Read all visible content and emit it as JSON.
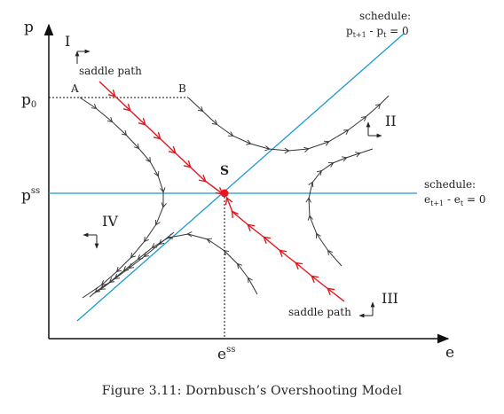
{
  "axes": {
    "y_label": "p",
    "x_label": "e",
    "p0_label_main": "p",
    "p0_label_sub": "0",
    "pss_label_main": "p",
    "pss_label_sup": "ss",
    "ess_label_main": "e",
    "ess_label_sup": "ss"
  },
  "schedules": {
    "price": {
      "title": "schedule:",
      "eq_p1": "p",
      "eq_sub1": "t+1",
      "eq_mid": " - p",
      "eq_sub2": "t",
      "eq_end": " = 0",
      "color": "#1a9ad6"
    },
    "exchange": {
      "title": "schedule:",
      "eq_e1": "e",
      "eq_sub1": "t+1",
      "eq_mid": " - e",
      "eq_sub2": "t",
      "eq_end": " = 0",
      "color": "#1a9ad6"
    }
  },
  "regions": {
    "one": "I",
    "two": "II",
    "three": "III",
    "four": "IV"
  },
  "points": {
    "a": "A",
    "b": "B",
    "s": "S"
  },
  "saddle_path_labels": {
    "upper": "saddle path",
    "lower": "saddle path"
  },
  "saddle_color": "#e8141b",
  "caption": "Figure 3.11: Dornbusch’s Overshooting Model"
}
